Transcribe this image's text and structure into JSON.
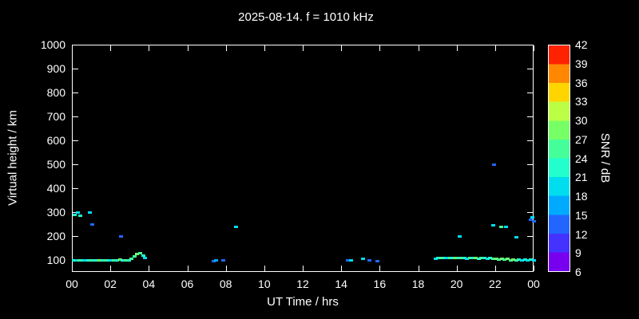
{
  "title": "2025-08-14. f = 1010 kHz",
  "axes": {
    "x_label": "UT Time / hrs",
    "y_label": "Virtual height / km",
    "x_tick_labels": [
      "00",
      "02",
      "04",
      "06",
      "08",
      "10",
      "12",
      "14",
      "16",
      "18",
      "20",
      "22",
      "00"
    ],
    "x_tick_values": [
      0,
      2,
      4,
      6,
      8,
      10,
      12,
      14,
      16,
      18,
      20,
      22,
      24
    ],
    "x_range": [
      0,
      24
    ],
    "y_tick_values": [
      100,
      200,
      300,
      400,
      500,
      600,
      700,
      800,
      900,
      1000
    ],
    "y_range": [
      50,
      1000
    ]
  },
  "colorbar": {
    "label": "SNR / dB",
    "tick_values": [
      6,
      9,
      12,
      15,
      18,
      21,
      24,
      27,
      30,
      33,
      36,
      39,
      42
    ],
    "range": [
      6,
      42
    ],
    "segment_colors": [
      "#7700EE",
      "#4433FF",
      "#2266FF",
      "#00AAFF",
      "#00DDEE",
      "#22FFCC",
      "#44FF99",
      "#77FF66",
      "#BBFF44",
      "#FFD500",
      "#FF8800",
      "#FF2200"
    ]
  },
  "chart_data": {
    "type": "scatter",
    "title": "2025-08-14. f = 1010 kHz",
    "xlabel": "UT Time / hrs",
    "ylabel": "Virtual height / km",
    "clabel": "SNR / dB",
    "x_units": "UT hours",
    "y_units": "km",
    "c_units": "dB",
    "xlim": [
      0,
      24
    ],
    "ylim": [
      50,
      1000
    ],
    "clim": [
      6,
      42
    ],
    "grid": false,
    "background": "#000000",
    "points_format": "[ut_hour, virtual_height_km, snr_db]",
    "points": [
      [
        0.1,
        100,
        21
      ],
      [
        0.25,
        98,
        18
      ],
      [
        0.4,
        100,
        24
      ],
      [
        0.55,
        100,
        21
      ],
      [
        0.7,
        98,
        18
      ],
      [
        0.85,
        100,
        21
      ],
      [
        1.0,
        100,
        24
      ],
      [
        1.15,
        100,
        21
      ],
      [
        1.3,
        98,
        21
      ],
      [
        1.45,
        100,
        27
      ],
      [
        1.6,
        100,
        21
      ],
      [
        1.75,
        100,
        24
      ],
      [
        1.9,
        100,
        21
      ],
      [
        2.05,
        100,
        18
      ],
      [
        2.2,
        100,
        24
      ],
      [
        2.35,
        100,
        21
      ],
      [
        2.5,
        102,
        27
      ],
      [
        2.65,
        100,
        21
      ],
      [
        2.8,
        100,
        24
      ],
      [
        2.95,
        100,
        21
      ],
      [
        3.1,
        105,
        24
      ],
      [
        3.25,
        115,
        24
      ],
      [
        3.4,
        125,
        27
      ],
      [
        3.55,
        128,
        24
      ],
      [
        3.7,
        120,
        21
      ],
      [
        3.8,
        110,
        18
      ],
      [
        0.15,
        290,
        21
      ],
      [
        0.3,
        300,
        18
      ],
      [
        0.45,
        285,
        21
      ],
      [
        0.95,
        300,
        18
      ],
      [
        1.05,
        250,
        12
      ],
      [
        2.55,
        200,
        12
      ],
      [
        7.35,
        95,
        12
      ],
      [
        7.5,
        100,
        15
      ],
      [
        7.85,
        100,
        12
      ],
      [
        8.55,
        240,
        18
      ],
      [
        14.35,
        100,
        12
      ],
      [
        14.5,
        100,
        18
      ],
      [
        15.15,
        105,
        18
      ],
      [
        15.45,
        100,
        12
      ],
      [
        15.9,
        95,
        12
      ],
      [
        18.9,
        105,
        18
      ],
      [
        19.05,
        108,
        21
      ],
      [
        19.2,
        110,
        24
      ],
      [
        19.35,
        108,
        21
      ],
      [
        19.5,
        108,
        18
      ],
      [
        19.65,
        110,
        24
      ],
      [
        19.8,
        108,
        21
      ],
      [
        19.95,
        108,
        27
      ],
      [
        20.1,
        108,
        21
      ],
      [
        20.25,
        108,
        24
      ],
      [
        20.4,
        108,
        21
      ],
      [
        20.55,
        105,
        18
      ],
      [
        20.7,
        108,
        24
      ],
      [
        20.85,
        108,
        21
      ],
      [
        21.0,
        108,
        27
      ],
      [
        21.15,
        105,
        21
      ],
      [
        21.3,
        108,
        24
      ],
      [
        21.45,
        108,
        21
      ],
      [
        21.6,
        105,
        18
      ],
      [
        21.75,
        108,
        21
      ],
      [
        21.9,
        105,
        24
      ],
      [
        22.05,
        105,
        27
      ],
      [
        22.2,
        102,
        24
      ],
      [
        22.35,
        105,
        27
      ],
      [
        22.5,
        102,
        24
      ],
      [
        22.65,
        105,
        27
      ],
      [
        22.8,
        100,
        24
      ],
      [
        22.95,
        102,
        27
      ],
      [
        23.1,
        100,
        24
      ],
      [
        23.25,
        102,
        21
      ],
      [
        23.4,
        100,
        18
      ],
      [
        23.55,
        102,
        21
      ],
      [
        23.7,
        100,
        18
      ],
      [
        23.85,
        102,
        21
      ],
      [
        24.0,
        100,
        18
      ],
      [
        20.15,
        200,
        18
      ],
      [
        21.95,
        500,
        12
      ],
      [
        21.9,
        245,
        18
      ],
      [
        22.3,
        240,
        24
      ],
      [
        22.55,
        240,
        18
      ],
      [
        23.1,
        195,
        18
      ],
      [
        23.85,
        270,
        12
      ],
      [
        23.95,
        280,
        18
      ],
      [
        24.0,
        262,
        12
      ]
    ]
  }
}
